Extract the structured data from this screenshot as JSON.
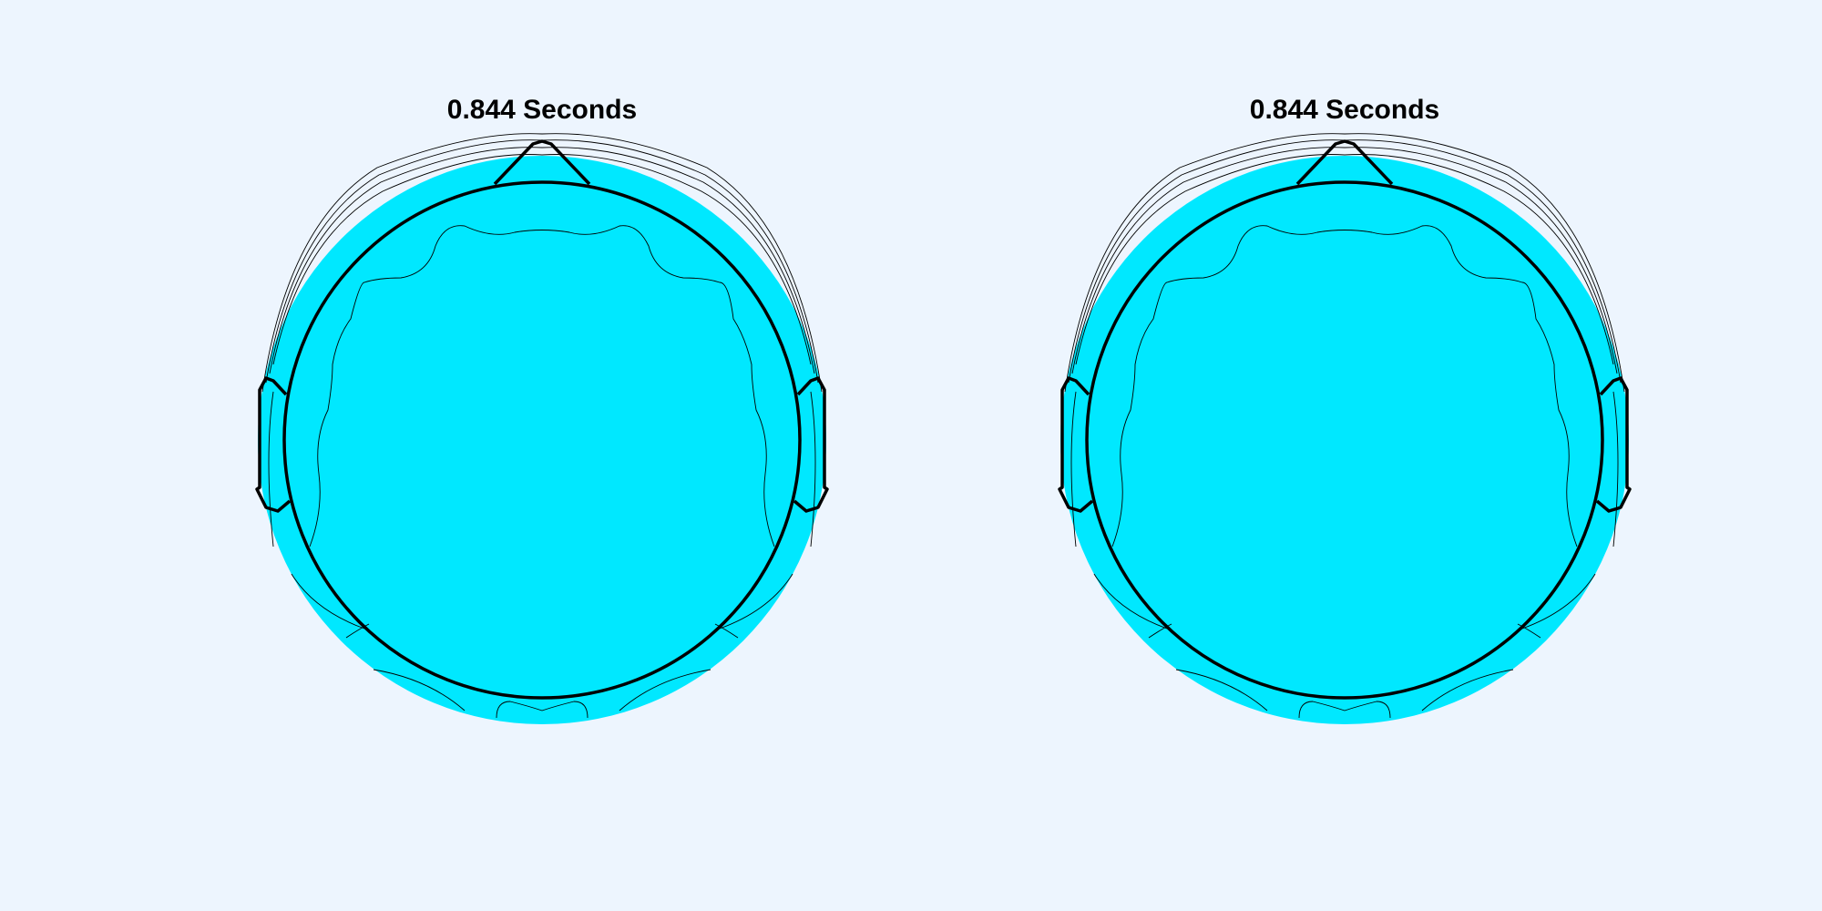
{
  "panels": [
    {
      "title": "0.844 Seconds",
      "fill_color": "#00e8ff",
      "outline_color": "#000000"
    },
    {
      "title": "0.844 Seconds",
      "fill_color": "#00e8ff",
      "outline_color": "#000000"
    }
  ],
  "background_color": "#edf5fe"
}
